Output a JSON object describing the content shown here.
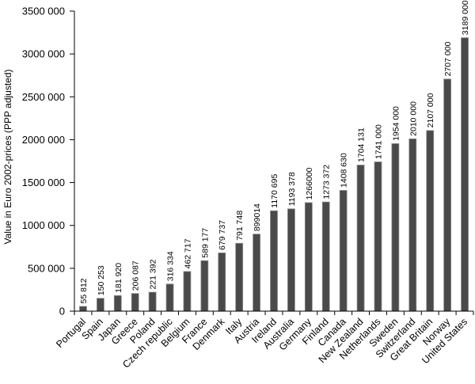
{
  "chart_data": {
    "type": "bar",
    "title": "",
    "xlabel": "",
    "ylabel": "Value in Euro 2002-prices (PPP adjusted)",
    "ylim": [
      0,
      3500000
    ],
    "grid": false,
    "legend": "none",
    "yticks": [
      0,
      500000,
      1000000,
      1500000,
      2000000,
      2500000,
      3000000,
      3500000
    ],
    "ytick_labels": [
      "0",
      "500 000",
      "1000 000",
      "1500 000",
      "2000 000",
      "2500 000",
      "3000 000",
      "3500 000"
    ],
    "categories": [
      "Portugal",
      "Spain",
      "Japan",
      "Greece",
      "Poland",
      "Czech republic",
      "Belgium",
      "France",
      "Denmark",
      "Italy",
      "Austria",
      "Ireland",
      "Australia",
      "Germany",
      "Finland",
      "Canada",
      "New Zealand",
      "Netherlands",
      "Sweden",
      "Switzerland",
      "Great Britain",
      "Norway",
      "United States"
    ],
    "values": [
      55812,
      150253,
      181920,
      206087,
      221392,
      316334,
      462717,
      589177,
      679737,
      791748,
      899014,
      1170695,
      1193378,
      1266000,
      1273372,
      1408630,
      1704131,
      1741000,
      1954000,
      2010000,
      2107000,
      2707000,
      3189000
    ],
    "value_labels": [
      "55 812",
      "150 253",
      "181 920",
      "206 087",
      "221 392",
      "316 334",
      "462 717",
      "589 177",
      "679 737",
      "791 748",
      "899014",
      "1170 695",
      "1193 378",
      "1266000",
      "1273 372",
      "1408 630",
      "1704 131",
      "1741 000",
      "1954 000",
      "2010 000",
      "2107 000",
      "2707 000",
      "3189 000"
    ],
    "colors": {
      "bar": "#4a4a4a",
      "bar_edge": "#8c8c8c",
      "axis": "#000000"
    }
  }
}
